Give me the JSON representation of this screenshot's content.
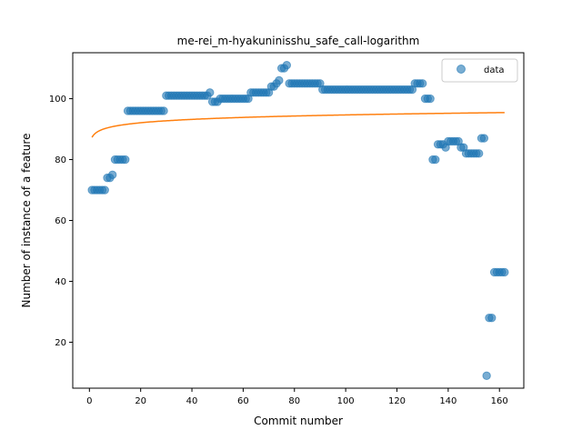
{
  "chart_data": {
    "type": "scatter",
    "title": "me-rei_m-hyakuninisshu_safe_call-logarithm",
    "xlabel": "Commit number",
    "ylabel": "Number of instance of a feature",
    "xlim": [
      -6.5,
      169.5
    ],
    "ylim": [
      4.9,
      115.1
    ],
    "xticks": [
      0,
      20,
      40,
      60,
      80,
      100,
      120,
      140,
      160
    ],
    "yticks": [
      20,
      40,
      60,
      80,
      100
    ],
    "legend": {
      "position": "top-right",
      "entries": [
        "data"
      ]
    },
    "grid": false,
    "colors": {
      "data": "#1f77b4",
      "fit": "#ff7f0e"
    },
    "series": [
      {
        "name": "data",
        "kind": "scatter",
        "points": [
          [
            1,
            70
          ],
          [
            2,
            70
          ],
          [
            3,
            70
          ],
          [
            4,
            70
          ],
          [
            5,
            70
          ],
          [
            6,
            70
          ],
          [
            7,
            74
          ],
          [
            8,
            74
          ],
          [
            9,
            75
          ],
          [
            10,
            80
          ],
          [
            11,
            80
          ],
          [
            12,
            80
          ],
          [
            13,
            80
          ],
          [
            14,
            80
          ],
          [
            15,
            96
          ],
          [
            16,
            96
          ],
          [
            17,
            96
          ],
          [
            18,
            96
          ],
          [
            19,
            96
          ],
          [
            20,
            96
          ],
          [
            21,
            96
          ],
          [
            22,
            96
          ],
          [
            23,
            96
          ],
          [
            24,
            96
          ],
          [
            25,
            96
          ],
          [
            26,
            96
          ],
          [
            27,
            96
          ],
          [
            28,
            96
          ],
          [
            29,
            96
          ],
          [
            30,
            101
          ],
          [
            31,
            101
          ],
          [
            32,
            101
          ],
          [
            33,
            101
          ],
          [
            34,
            101
          ],
          [
            35,
            101
          ],
          [
            36,
            101
          ],
          [
            37,
            101
          ],
          [
            38,
            101
          ],
          [
            39,
            101
          ],
          [
            40,
            101
          ],
          [
            41,
            101
          ],
          [
            42,
            101
          ],
          [
            43,
            101
          ],
          [
            44,
            101
          ],
          [
            45,
            101
          ],
          [
            46,
            101
          ],
          [
            47,
            102
          ],
          [
            48,
            99
          ],
          [
            49,
            99
          ],
          [
            50,
            99
          ],
          [
            51,
            100
          ],
          [
            52,
            100
          ],
          [
            53,
            100
          ],
          [
            54,
            100
          ],
          [
            55,
            100
          ],
          [
            56,
            100
          ],
          [
            57,
            100
          ],
          [
            58,
            100
          ],
          [
            59,
            100
          ],
          [
            60,
            100
          ],
          [
            61,
            100
          ],
          [
            62,
            100
          ],
          [
            63,
            102
          ],
          [
            64,
            102
          ],
          [
            65,
            102
          ],
          [
            66,
            102
          ],
          [
            67,
            102
          ],
          [
            68,
            102
          ],
          [
            69,
            102
          ],
          [
            70,
            102
          ],
          [
            71,
            104
          ],
          [
            72,
            104
          ],
          [
            73,
            105
          ],
          [
            74,
            106
          ],
          [
            75,
            110
          ],
          [
            76,
            110
          ],
          [
            77,
            111
          ],
          [
            78,
            105
          ],
          [
            79,
            105
          ],
          [
            80,
            105
          ],
          [
            81,
            105
          ],
          [
            82,
            105
          ],
          [
            83,
            105
          ],
          [
            84,
            105
          ],
          [
            85,
            105
          ],
          [
            86,
            105
          ],
          [
            87,
            105
          ],
          [
            88,
            105
          ],
          [
            89,
            105
          ],
          [
            90,
            105
          ],
          [
            91,
            103
          ],
          [
            92,
            103
          ],
          [
            93,
            103
          ],
          [
            94,
            103
          ],
          [
            95,
            103
          ],
          [
            96,
            103
          ],
          [
            97,
            103
          ],
          [
            98,
            103
          ],
          [
            99,
            103
          ],
          [
            100,
            103
          ],
          [
            101,
            103
          ],
          [
            102,
            103
          ],
          [
            103,
            103
          ],
          [
            104,
            103
          ],
          [
            105,
            103
          ],
          [
            106,
            103
          ],
          [
            107,
            103
          ],
          [
            108,
            103
          ],
          [
            109,
            103
          ],
          [
            110,
            103
          ],
          [
            111,
            103
          ],
          [
            112,
            103
          ],
          [
            113,
            103
          ],
          [
            114,
            103
          ],
          [
            115,
            103
          ],
          [
            116,
            103
          ],
          [
            117,
            103
          ],
          [
            118,
            103
          ],
          [
            119,
            103
          ],
          [
            120,
            103
          ],
          [
            121,
            103
          ],
          [
            122,
            103
          ],
          [
            123,
            103
          ],
          [
            124,
            103
          ],
          [
            125,
            103
          ],
          [
            126,
            103
          ],
          [
            127,
            105
          ],
          [
            128,
            105
          ],
          [
            129,
            105
          ],
          [
            130,
            105
          ],
          [
            131,
            100
          ],
          [
            132,
            100
          ],
          [
            133,
            100
          ],
          [
            134,
            80
          ],
          [
            135,
            80
          ],
          [
            136,
            85
          ],
          [
            137,
            85
          ],
          [
            138,
            85
          ],
          [
            139,
            84
          ],
          [
            140,
            86
          ],
          [
            141,
            86
          ],
          [
            142,
            86
          ],
          [
            143,
            86
          ],
          [
            144,
            86
          ],
          [
            145,
            84
          ],
          [
            146,
            84
          ],
          [
            147,
            82
          ],
          [
            148,
            82
          ],
          [
            149,
            82
          ],
          [
            150,
            82
          ],
          [
            151,
            82
          ],
          [
            152,
            82
          ],
          [
            153,
            87
          ],
          [
            154,
            87
          ],
          [
            155,
            9
          ],
          [
            156,
            28
          ],
          [
            157,
            28
          ],
          [
            158,
            43
          ],
          [
            159,
            43
          ],
          [
            160,
            43
          ],
          [
            161,
            43
          ],
          [
            162,
            43
          ]
        ]
      },
      {
        "kind": "line",
        "function": "logarithmic fit",
        "a": 1.6,
        "b": 87.3,
        "x_range": [
          1,
          162
        ]
      }
    ]
  }
}
